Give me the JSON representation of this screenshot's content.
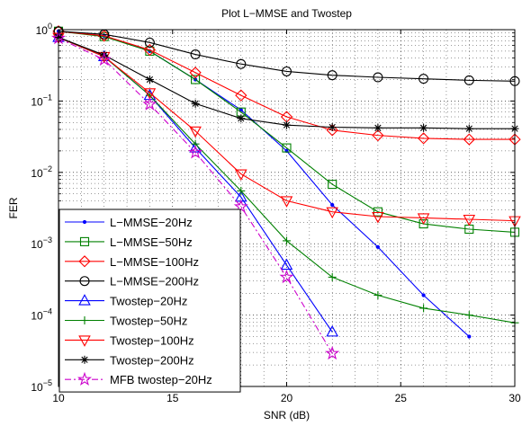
{
  "chart_data": {
    "type": "line",
    "title": "Plot L−MMSE and Twostep",
    "xlabel": "SNR (dB)",
    "ylabel": "FER",
    "xlim": [
      10,
      30
    ],
    "ylim": [
      1e-05,
      1
    ],
    "yscale": "log",
    "grid": true,
    "legend_position": "bottom-left",
    "x_ticks": [
      "10",
      "15",
      "20",
      "25",
      "30"
    ],
    "y_ticks": [
      {
        "base": "10",
        "exp": "0"
      },
      {
        "base": "10",
        "exp": "−1"
      },
      {
        "base": "10",
        "exp": "−2"
      },
      {
        "base": "10",
        "exp": "−3"
      },
      {
        "base": "10",
        "exp": "−4"
      },
      {
        "base": "10",
        "exp": "−5"
      }
    ],
    "series": [
      {
        "name": "L−MMSE−20Hz",
        "color": "#0000ff",
        "marker": "dot",
        "dash": "solid",
        "x": [
          10,
          12,
          14,
          16,
          18,
          20,
          22,
          24,
          26,
          28
        ],
        "y": [
          0.95,
          0.82,
          0.5,
          0.2,
          0.075,
          0.02,
          0.0035,
          0.0009,
          0.00019,
          5e-05
        ]
      },
      {
        "name": "L−MMSE−50Hz",
        "color": "#008000",
        "marker": "square",
        "dash": "solid",
        "x": [
          10,
          12,
          14,
          16,
          18,
          20,
          22,
          24,
          26,
          28,
          30
        ],
        "y": [
          0.95,
          0.8,
          0.5,
          0.2,
          0.07,
          0.022,
          0.0068,
          0.0028,
          0.0019,
          0.0016,
          0.00145
        ]
      },
      {
        "name": "L−MMSE−100Hz",
        "color": "#ff0000",
        "marker": "diamond",
        "dash": "solid",
        "x": [
          10,
          12,
          14,
          16,
          18,
          20,
          22,
          24,
          26,
          28,
          30
        ],
        "y": [
          0.95,
          0.82,
          0.52,
          0.25,
          0.12,
          0.06,
          0.039,
          0.033,
          0.03,
          0.029,
          0.029
        ]
      },
      {
        "name": "L−MMSE−200Hz",
        "color": "#000000",
        "marker": "circle",
        "dash": "solid",
        "x": [
          10,
          12,
          14,
          16,
          18,
          20,
          22,
          24,
          26,
          28,
          30
        ],
        "y": [
          0.95,
          0.86,
          0.66,
          0.45,
          0.33,
          0.26,
          0.23,
          0.215,
          0.205,
          0.195,
          0.19
        ]
      },
      {
        "name": "Twostep−20Hz",
        "color": "#0000ff",
        "marker": "triangle-up",
        "dash": "solid",
        "x": [
          10,
          12,
          14,
          16,
          18,
          20,
          22
        ],
        "y": [
          0.78,
          0.42,
          0.12,
          0.022,
          0.0045,
          0.0005,
          5.8e-05
        ]
      },
      {
        "name": "Twostep−50Hz",
        "color": "#008000",
        "marker": "plus",
        "dash": "solid",
        "x": [
          10,
          12,
          14,
          16,
          18,
          20,
          22,
          24,
          26,
          28,
          30
        ],
        "y": [
          0.78,
          0.42,
          0.12,
          0.025,
          0.0055,
          0.0011,
          0.00034,
          0.00019,
          0.000125,
          0.0001,
          7.8e-05
        ]
      },
      {
        "name": "Twostep−100Hz",
        "color": "#ff0000",
        "marker": "triangle-down",
        "dash": "solid",
        "x": [
          10,
          12,
          14,
          16,
          18,
          20,
          22,
          24,
          26,
          28,
          30
        ],
        "y": [
          0.78,
          0.42,
          0.13,
          0.038,
          0.0095,
          0.004,
          0.0028,
          0.0024,
          0.0023,
          0.0022,
          0.0021
        ]
      },
      {
        "name": "Twostep−200Hz",
        "color": "#000000",
        "marker": "asterisk",
        "dash": "solid",
        "x": [
          10,
          12,
          14,
          16,
          18,
          20,
          22,
          24,
          26,
          28,
          30
        ],
        "y": [
          0.78,
          0.44,
          0.2,
          0.092,
          0.057,
          0.046,
          0.043,
          0.042,
          0.042,
          0.041,
          0.041
        ]
      },
      {
        "name": "MFB twostep−20Hz",
        "color": "#cc00cc",
        "marker": "star",
        "dash": "dashdot",
        "x": [
          10,
          12,
          14,
          16,
          18,
          20,
          22
        ],
        "y": [
          0.76,
          0.38,
          0.09,
          0.019,
          0.0033,
          0.00034,
          2.9e-05
        ]
      }
    ]
  }
}
